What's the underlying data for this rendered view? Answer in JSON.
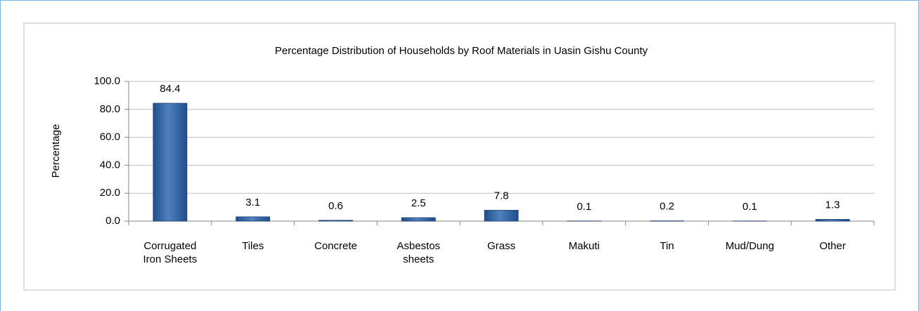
{
  "chart_data": {
    "type": "bar",
    "title": "Percentage Distribution of Households by Roof Materials  in Uasin Gishu  County",
    "y_label": "Percentage",
    "categories": [
      "Corrugated Iron Sheets",
      "Tiles",
      "Concrete",
      "Asbestos sheets",
      "Grass",
      "Makuti",
      "Tin",
      "Mud/Dung",
      "Other"
    ],
    "values": [
      84.4,
      3.1,
      0.6,
      2.5,
      7.8,
      0.1,
      0.2,
      0.1,
      1.3
    ],
    "color": "#4f81bd",
    "ylim": [
      0,
      100
    ],
    "yticks": [
      {
        "value": 0,
        "label": "0.0"
      },
      {
        "value": 20,
        "label": "20.0"
      },
      {
        "value": 40,
        "label": "40.0"
      },
      {
        "value": 60,
        "label": "60.0"
      },
      {
        "value": 80,
        "label": "80.0"
      },
      {
        "value": 100,
        "label": "100.0"
      }
    ],
    "grid": true
  }
}
